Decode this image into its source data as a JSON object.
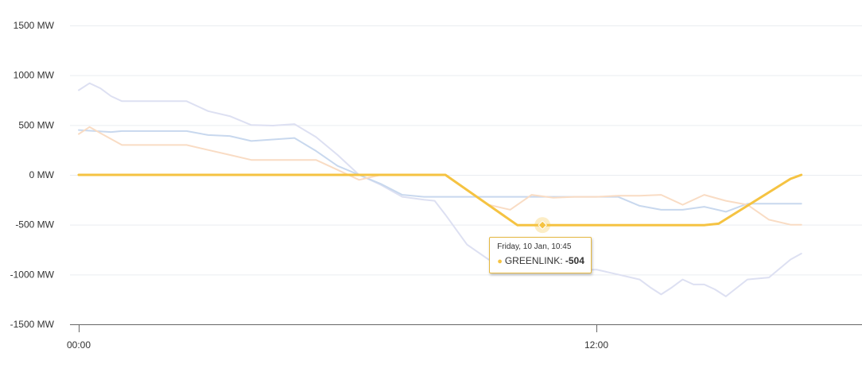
{
  "chart_data": {
    "type": "line",
    "x_tick_labels": [
      "00:00",
      "12:00"
    ],
    "y_tick_labels": [
      "1500 MW",
      "1000 MW",
      "500 MW",
      "0 MW",
      "-500 MW",
      "-1000 MW",
      "-1500 MW"
    ],
    "y_ticks": [
      1500,
      1000,
      500,
      0,
      -500,
      -1000,
      -1500
    ],
    "ylim": [
      -1500,
      1500
    ],
    "x_unit": "hour",
    "xlim": [
      0,
      24
    ],
    "grid": true,
    "series": [
      {
        "name": "GREENLINK",
        "color": "#f5c342",
        "highlighted": true,
        "x": [
          0,
          8.5,
          10.167,
          10.75,
          14.5,
          14.833,
          16.5,
          16.75
        ],
        "y": [
          0,
          0,
          -504,
          -504,
          -504,
          -490,
          -40,
          0
        ]
      },
      {
        "color": "#dde0f2",
        "highlighted": false,
        "x": [
          0,
          0.25,
          0.5,
          0.75,
          1,
          2.5,
          3,
          3.5,
          4,
          4.5,
          5,
          5.5,
          6,
          6.5,
          7,
          7.5,
          8,
          8.25,
          8.5,
          9,
          9.5,
          9.75,
          10,
          10.5,
          11,
          11.5,
          12,
          12.5,
          13,
          13.25,
          13.5,
          13.75,
          14,
          14.25,
          14.5,
          14.75,
          15,
          15.5,
          16,
          16.5,
          16.75
        ],
        "y": [
          850,
          920,
          870,
          790,
          740,
          740,
          640,
          590,
          500,
          495,
          510,
          380,
          200,
          0,
          -100,
          -220,
          -250,
          -260,
          -400,
          -700,
          -850,
          -900,
          -930,
          -950,
          -950,
          -960,
          -950,
          -1000,
          -1050,
          -1130,
          -1200,
          -1130,
          -1050,
          -1100,
          -1100,
          -1150,
          -1220,
          -1050,
          -1030,
          -850,
          -790
        ]
      },
      {
        "color": "#c8d8ee",
        "highlighted": false,
        "x": [
          0,
          0.75,
          1,
          2.5,
          3,
          3.5,
          4,
          5,
          5.5,
          6,
          6.5,
          7,
          7.5,
          8,
          8.5,
          9,
          10,
          11,
          12,
          12.5,
          13,
          13.5,
          14,
          14.5,
          15,
          15.5,
          16,
          16.5,
          16.75
        ],
        "y": [
          450,
          430,
          440,
          440,
          400,
          390,
          340,
          370,
          240,
          90,
          0,
          -90,
          -200,
          -220,
          -220,
          -220,
          -220,
          -220,
          -220,
          -220,
          -310,
          -350,
          -350,
          -320,
          -370,
          -290,
          -290,
          -290,
          -290
        ]
      },
      {
        "color": "#f9dcc4",
        "highlighted": false,
        "x": [
          0,
          0.25,
          0.5,
          1,
          1.5,
          2,
          2.5,
          3,
          3.5,
          4,
          4.5,
          5,
          5.5,
          6,
          6.5,
          7,
          7.5,
          8,
          8.5,
          9,
          9.5,
          10,
          10.5,
          11,
          11.5,
          12,
          12.5,
          13,
          13.5,
          14,
          14.5,
          15,
          15.5,
          16,
          16.5,
          16.75
        ],
        "y": [
          410,
          480,
          420,
          300,
          300,
          300,
          300,
          250,
          200,
          150,
          150,
          150,
          150,
          50,
          -50,
          0,
          0,
          0,
          0,
          -150,
          -300,
          -350,
          -200,
          -230,
          -220,
          -220,
          -210,
          -210,
          -200,
          -300,
          -200,
          -260,
          -300,
          -450,
          -500,
          -500
        ]
      }
    ],
    "tooltip": {
      "time": "Friday, 10 Jan, 10:45",
      "series": "GREENLINK",
      "value": "-504",
      "x": 10.75,
      "y": -504
    }
  }
}
